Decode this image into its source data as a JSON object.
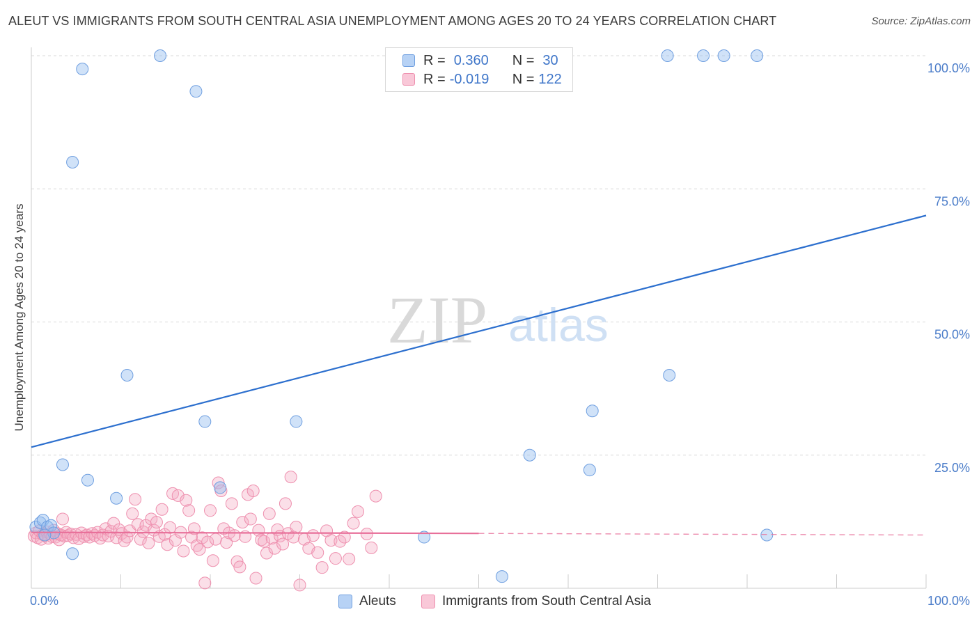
{
  "title": "ALEUT VS IMMIGRANTS FROM SOUTH CENTRAL ASIA UNEMPLOYMENT AMONG AGES 20 TO 24 YEARS CORRELATION CHART",
  "source": "Source: ZipAtlas.com",
  "watermark": {
    "zip": "ZIP",
    "atlas": "atlas"
  },
  "legend": {
    "rows": [
      {
        "r_label": "R =",
        "r_value": "0.360",
        "n_label": "N =",
        "n_value": "30",
        "color": "#a9c8f2",
        "border": "#6f9fe0"
      },
      {
        "r_label": "R =",
        "r_value": "-0.019",
        "n_label": "N =",
        "n_value": "122",
        "color": "#f7bdd0",
        "border": "#ee8fae"
      }
    ]
  },
  "bottom_legend": {
    "aleuts": "Aleuts",
    "immigrants": "Immigrants from South Central Asia"
  },
  "colors": {
    "aleut_fill": "rgba(150,190,240,0.45)",
    "aleut_stroke": "#6f9fe0",
    "aleut_line": "#2c6fce",
    "imm_fill": "rgba(245,170,195,0.38)",
    "imm_stroke": "#ee8fae",
    "imm_line": "#e8709a",
    "tick_label": "#4a7cc9",
    "grid": "#d8d8d8"
  },
  "chart_data": {
    "type": "scatter",
    "title": "ALEUT VS IMMIGRANTS FROM SOUTH CENTRAL ASIA UNEMPLOYMENT AMONG AGES 20 TO 24 YEARS CORRELATION CHART",
    "xlabel": "",
    "ylabel": "Unemployment Among Ages 20 to 24 years",
    "xlim": [
      0,
      100
    ],
    "ylim": [
      0,
      100
    ],
    "x_tick_labels": [
      "0.0%",
      "100.0%"
    ],
    "y_tick_labels": [
      "25.0%",
      "50.0%",
      "75.0%",
      "100.0%"
    ],
    "y_ticks": [
      25,
      50,
      75,
      100
    ],
    "grid": true,
    "legend_position": "top-center",
    "series": [
      {
        "name": "Aleuts",
        "points": [
          [
            0.5,
            11.5
          ],
          [
            1.0,
            12.3
          ],
          [
            1.3,
            12.8
          ],
          [
            1.8,
            11.5
          ],
          [
            2.2,
            11.8
          ],
          [
            2.5,
            10.4
          ],
          [
            3.5,
            23.2
          ],
          [
            4.6,
            6.5
          ],
          [
            5.7,
            97.5
          ],
          [
            4.6,
            80.0
          ],
          [
            6.3,
            20.3
          ],
          [
            9.5,
            16.9
          ],
          [
            10.7,
            40.0
          ],
          [
            14.4,
            100
          ],
          [
            18.4,
            93.3
          ],
          [
            19.4,
            31.3
          ],
          [
            21.1,
            18.9
          ],
          [
            29.6,
            31.3
          ],
          [
            43.9,
            9.6
          ],
          [
            52.6,
            2.2
          ],
          [
            55.7,
            25.0
          ],
          [
            62.4,
            22.2
          ],
          [
            62.7,
            33.3
          ],
          [
            71.1,
            100
          ],
          [
            71.3,
            40.0
          ],
          [
            75.1,
            100
          ],
          [
            77.4,
            100
          ],
          [
            81.1,
            100
          ],
          [
            82.2,
            10.0
          ],
          [
            1.5,
            10.0
          ]
        ],
        "trend": {
          "x": [
            0,
            100
          ],
          "y": [
            26.5,
            70.0
          ],
          "style": "solid"
        }
      },
      {
        "name": "Immigrants from South Central Asia",
        "points": [
          [
            0.3,
            9.8
          ],
          [
            0.5,
            10.4
          ],
          [
            0.7,
            9.5
          ],
          [
            0.9,
            10.8
          ],
          [
            1.1,
            9.2
          ],
          [
            1.3,
            10.1
          ],
          [
            1.5,
            9.9
          ],
          [
            1.7,
            10.6
          ],
          [
            1.9,
            9.4
          ],
          [
            2.1,
            10.2
          ],
          [
            2.3,
            9.7
          ],
          [
            2.5,
            10.9
          ],
          [
            2.7,
            9.6
          ],
          [
            2.9,
            10.3
          ],
          [
            3.1,
            9.1
          ],
          [
            3.3,
            10.0
          ],
          [
            3.5,
            13.0
          ],
          [
            3.7,
            9.8
          ],
          [
            3.9,
            10.5
          ],
          [
            4.1,
            9.9
          ],
          [
            4.4,
            10.2
          ],
          [
            4.7,
            9.5
          ],
          [
            5.0,
            10.1
          ],
          [
            5.3,
            9.3
          ],
          [
            5.6,
            10.4
          ],
          [
            5.9,
            9.7
          ],
          [
            6.2,
            10.0
          ],
          [
            6.5,
            9.6
          ],
          [
            6.8,
            10.3
          ],
          [
            7.1,
            9.9
          ],
          [
            7.4,
            10.5
          ],
          [
            7.7,
            9.4
          ],
          [
            8.0,
            10.0
          ],
          [
            8.3,
            11.2
          ],
          [
            8.6,
            9.8
          ],
          [
            8.9,
            10.7
          ],
          [
            9.2,
            12.2
          ],
          [
            9.5,
            9.5
          ],
          [
            9.8,
            11.0
          ],
          [
            10.1,
            10.3
          ],
          [
            10.4,
            8.9
          ],
          [
            10.7,
            9.6
          ],
          [
            11.0,
            10.8
          ],
          [
            11.3,
            14.0
          ],
          [
            11.6,
            16.7
          ],
          [
            11.9,
            12.0
          ],
          [
            12.2,
            9.2
          ],
          [
            12.5,
            10.6
          ],
          [
            12.8,
            11.8
          ],
          [
            13.1,
            8.5
          ],
          [
            13.4,
            13.0
          ],
          [
            13.7,
            10.9
          ],
          [
            14.0,
            12.4
          ],
          [
            14.3,
            9.7
          ],
          [
            14.6,
            14.8
          ],
          [
            14.9,
            10.1
          ],
          [
            15.2,
            8.2
          ],
          [
            15.5,
            11.4
          ],
          [
            15.8,
            17.8
          ],
          [
            16.1,
            9.0
          ],
          [
            16.4,
            17.4
          ],
          [
            16.7,
            10.5
          ],
          [
            17.0,
            7.0
          ],
          [
            17.3,
            16.5
          ],
          [
            17.6,
            14.6
          ],
          [
            17.9,
            9.6
          ],
          [
            18.2,
            11.2
          ],
          [
            18.5,
            8.0
          ],
          [
            18.8,
            7.3
          ],
          [
            19.1,
            9.5
          ],
          [
            19.4,
            1.0
          ],
          [
            19.7,
            8.7
          ],
          [
            20.0,
            14.6
          ],
          [
            20.3,
            5.2
          ],
          [
            20.6,
            9.2
          ],
          [
            20.9,
            19.8
          ],
          [
            21.2,
            18.3
          ],
          [
            21.5,
            11.2
          ],
          [
            21.8,
            8.6
          ],
          [
            22.1,
            10.4
          ],
          [
            22.4,
            15.9
          ],
          [
            22.7,
            9.9
          ],
          [
            23.0,
            5.0
          ],
          [
            23.3,
            4.0
          ],
          [
            23.6,
            12.4
          ],
          [
            23.9,
            9.7
          ],
          [
            24.2,
            17.6
          ],
          [
            24.5,
            13.0
          ],
          [
            24.8,
            18.3
          ],
          [
            25.1,
            1.9
          ],
          [
            25.4,
            10.9
          ],
          [
            25.7,
            9.1
          ],
          [
            26.0,
            8.8
          ],
          [
            26.3,
            6.6
          ],
          [
            26.6,
            14.0
          ],
          [
            26.9,
            9.4
          ],
          [
            27.2,
            7.5
          ],
          [
            27.5,
            11.0
          ],
          [
            27.8,
            9.8
          ],
          [
            28.1,
            8.3
          ],
          [
            28.4,
            15.9
          ],
          [
            28.7,
            10.3
          ],
          [
            29.0,
            20.9
          ],
          [
            29.3,
            9.6
          ],
          [
            29.6,
            11.5
          ],
          [
            30.0,
            0.6
          ],
          [
            30.5,
            9.2
          ],
          [
            31.0,
            7.5
          ],
          [
            31.5,
            9.9
          ],
          [
            32.0,
            6.7
          ],
          [
            32.5,
            3.9
          ],
          [
            33.0,
            10.8
          ],
          [
            33.5,
            9.0
          ],
          [
            34.0,
            5.6
          ],
          [
            34.5,
            8.8
          ],
          [
            35.0,
            9.6
          ],
          [
            35.5,
            5.5
          ],
          [
            36.0,
            12.2
          ],
          [
            36.5,
            14.4
          ],
          [
            37.5,
            10.2
          ],
          [
            38.0,
            7.6
          ],
          [
            38.5,
            17.3
          ]
        ],
        "trend": {
          "x": [
            0,
            50,
            100
          ],
          "y": [
            10.5,
            10.3,
            10.0
          ],
          "style": "solid-then-dashed"
        }
      }
    ]
  }
}
